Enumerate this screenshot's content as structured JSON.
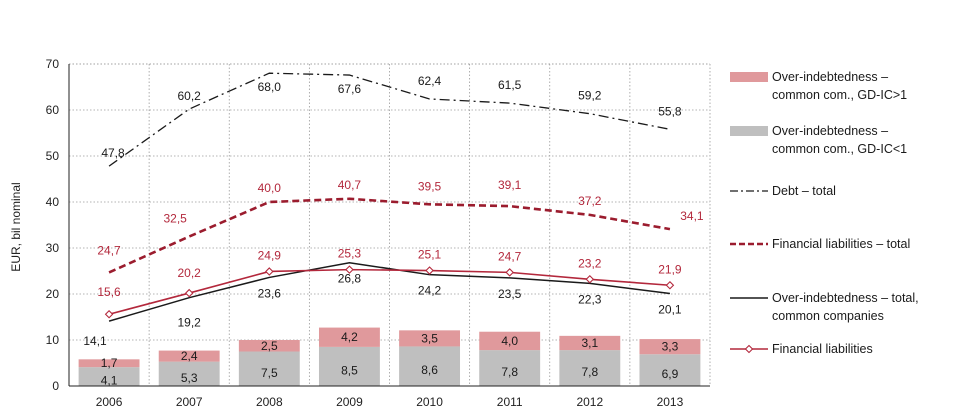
{
  "chart_data": {
    "type": "bar",
    "categories": [
      "2006",
      "2007",
      "2008",
      "2009",
      "2010",
      "2011",
      "2012",
      "2013"
    ],
    "ylabel": "EUR, bil nominal",
    "ylim": [
      0,
      70
    ],
    "yticks": [
      "0",
      "10",
      "20",
      "30",
      "40",
      "50",
      "60",
      "70"
    ],
    "grid": "dotted",
    "legend_position": "right",
    "bar_series": [
      {
        "name": "Over-indebtedness – common com., GD-IC<1",
        "legend": [
          "Over-indebtedness –",
          "common com., GD-IC<1"
        ],
        "color": "#bfbfbf",
        "values": [
          4.1,
          5.3,
          7.5,
          8.5,
          8.6,
          7.8,
          7.8,
          6.9
        ],
        "labels": [
          "4,1",
          "5,3",
          "7,5",
          "8,5",
          "8,6",
          "7,8",
          "7,8",
          "6,9"
        ]
      },
      {
        "name": "Over-indebtedness – common com., GD-IC>1",
        "legend": [
          "Over-indebtedness –",
          "common com., GD-IC>1"
        ],
        "color": "#e0999c",
        "values": [
          1.7,
          2.4,
          2.5,
          4.2,
          3.5,
          4.0,
          3.1,
          3.3
        ],
        "labels": [
          "1,7",
          "2,4",
          "2,5",
          "4,2",
          "3,5",
          "4,0",
          "3,1",
          "3,3"
        ]
      }
    ],
    "line_series": [
      {
        "name": "Debt – total",
        "legend": [
          "Debt – total"
        ],
        "color": "#1a1a1a",
        "style": "dashdot",
        "label_color": "#1a1a1a",
        "values": [
          47.8,
          60.2,
          68.0,
          67.6,
          62.4,
          61.5,
          59.2,
          55.8
        ],
        "labels": [
          "47,8",
          "60,2",
          "68,0",
          "67,6",
          "62,4",
          "61,5",
          "59,2",
          "55,8"
        ]
      },
      {
        "name": "Financial liabilities – total",
        "legend": [
          "Financial liabilities – total"
        ],
        "color": "#9b1c2e",
        "style": "dashed",
        "label_color": "#b3283c",
        "values": [
          24.7,
          32.5,
          40.0,
          40.7,
          39.5,
          39.1,
          37.2,
          34.1
        ],
        "labels": [
          "24,7",
          "32,5",
          "40,0",
          "40,7",
          "39,5",
          "39,1",
          "37,2",
          "34,1"
        ]
      },
      {
        "name": "Over-indebtedness – total, common companies",
        "legend": [
          "Over-indebtedness – total,",
          "common companies"
        ],
        "color": "#1a1a1a",
        "style": "solid",
        "label_color": "#1a1a1a",
        "values": [
          14.1,
          19.2,
          23.6,
          26.8,
          24.2,
          23.5,
          22.3,
          20.1
        ],
        "labels": [
          "14,1",
          "19,2",
          "23,6",
          "26,8",
          "24,2",
          "23,5",
          "22,3",
          "20,1"
        ]
      },
      {
        "name": "Financial liabilities",
        "legend": [
          "Financial liabilities"
        ],
        "color": "#b3283c",
        "style": "solid-diamond",
        "label_color": "#b3283c",
        "values": [
          15.6,
          20.2,
          24.9,
          25.3,
          25.1,
          24.7,
          23.2,
          21.9
        ],
        "labels": [
          "15,6",
          "20,2",
          "24,9",
          "25,3",
          "25,1",
          "24,7",
          "23,2",
          "21,9"
        ]
      }
    ],
    "legend_order": [
      "Over-indebtedness – common com., GD-IC>1",
      "Over-indebtedness – common com., GD-IC<1",
      "Debt – total",
      "Financial liabilities – total",
      "Over-indebtedness – total, common companies",
      "Financial liabilities"
    ]
  }
}
